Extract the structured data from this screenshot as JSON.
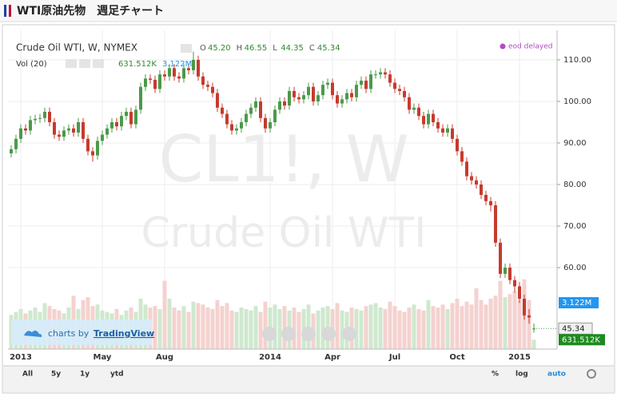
{
  "page": {
    "title": "WTI原油先物　週足チャート",
    "status": "eod delayed",
    "credit": "charts by",
    "brand": "TradingView",
    "ranges": [
      "All",
      "5y",
      "1y",
      "ytd"
    ],
    "scales": [
      "%",
      "log",
      "auto"
    ]
  },
  "chart_data": {
    "type": "candlestick",
    "title": "Crude Oil WTI, W, NYMEX",
    "watermark": [
      "CL1!, W",
      "Crude Oil WTI"
    ],
    "ohlc_legend": [
      {
        "label": "O",
        "value": "45.20"
      },
      {
        "label": "H",
        "value": "46.55"
      },
      {
        "label": "L",
        "value": "44.35"
      },
      {
        "label": "C",
        "value": "45.34"
      }
    ],
    "last_price_label": "45.34",
    "categories": [
      null,
      null,
      "2013",
      null,
      null,
      null,
      null,
      null,
      null,
      null,
      null,
      null,
      null,
      null,
      null,
      null,
      null,
      null,
      null,
      "May",
      null,
      null,
      null,
      null,
      null,
      null,
      null,
      null,
      null,
      null,
      null,
      null,
      "Aug",
      null,
      null,
      null,
      null,
      null,
      null,
      null,
      null,
      null,
      null,
      null,
      null,
      null,
      null,
      null,
      null,
      null,
      null,
      null,
      null,
      null,
      "2014",
      null,
      null,
      null,
      null,
      null,
      null,
      null,
      null,
      null,
      null,
      null,
      null,
      "Apr",
      null,
      null,
      null,
      null,
      null,
      null,
      null,
      null,
      null,
      null,
      null,
      null,
      "Jul",
      null,
      null,
      null,
      null,
      null,
      null,
      null,
      null,
      null,
      null,
      null,
      null,
      "Oct",
      null,
      null,
      null,
      null,
      null,
      null,
      null,
      null,
      null,
      null,
      null,
      null,
      "2015",
      null,
      null,
      null
    ],
    "series": [
      {
        "name": "Crude Oil WTI",
        "up_color": "#4b9a4b",
        "down_color": "#c63b2e",
        "open": [
          87.5,
          88.5,
          91,
          93.5,
          93,
          95.5,
          95.8,
          96,
          97.5,
          95,
          92,
          91.5,
          93,
          93.5,
          92.5,
          95,
          91,
          88,
          87,
          90.5,
          92,
          93.5,
          95,
          94,
          96.5,
          97.5,
          94.5,
          98,
          103.5,
          105.5,
          105.2,
          103,
          106.5,
          106,
          108,
          106,
          105.5,
          108,
          107.5,
          110,
          106,
          104,
          103.5,
          102,
          98.5,
          97,
          94.5,
          93,
          93.5,
          95,
          97,
          98.5,
          100,
          96,
          93.5,
          95,
          98,
          100,
          99,
          102.5,
          101,
          100.5,
          101.5,
          103.5,
          100,
          101.5,
          104,
          104.5,
          101.5,
          99.5,
          100.5,
          102,
          101,
          104,
          105,
          103,
          106.5,
          106.5,
          107,
          106.5,
          104.5,
          103,
          102.5,
          101,
          98,
          98.5,
          96.5,
          94.5,
          97,
          95,
          93.5,
          92.5,
          93.5,
          91,
          88,
          85.5,
          82,
          81,
          80,
          77.5,
          76,
          75,
          66,
          58.5,
          60,
          57,
          55.5,
          52.5,
          48.5,
          45.2
        ],
        "high": [
          89.5,
          92,
          94.5,
          94.5,
          96.5,
          96.8,
          97,
          98.5,
          98.5,
          96,
          93,
          94,
          94.5,
          94.5,
          96,
          96,
          92,
          89,
          91.5,
          93,
          94.5,
          96,
          96,
          97.5,
          98.5,
          98.5,
          99,
          104.5,
          106.5,
          106.5,
          106.2,
          107.5,
          107.5,
          109,
          109,
          107,
          109,
          109,
          112,
          111,
          107,
          105,
          104.5,
          103,
          99.5,
          98,
          95.5,
          94.5,
          96,
          98,
          99.5,
          101,
          101,
          97,
          96,
          99,
          101,
          101,
          103.5,
          103.5,
          102,
          102.5,
          104.5,
          104.5,
          102.5,
          105,
          105.5,
          105.5,
          102.5,
          101.5,
          103,
          103,
          105,
          106,
          106,
          107.5,
          107.5,
          108,
          108,
          107.5,
          105.5,
          104,
          103.5,
          102,
          99.5,
          99.5,
          97.5,
          98,
          98,
          96,
          94.5,
          94.5,
          94.5,
          92,
          89,
          86.5,
          83,
          82,
          81,
          78.5,
          77,
          76,
          67,
          61,
          61,
          58,
          56.5,
          53.5,
          50,
          46.55
        ],
        "low": [
          86.5,
          87.5,
          90,
          92,
          92,
          94.5,
          94.8,
          95,
          94,
          91,
          90.5,
          90.5,
          92,
          91.5,
          91.5,
          90,
          87,
          85.5,
          86,
          89.5,
          91,
          92.5,
          93,
          93,
          95.5,
          93.5,
          93.5,
          97,
          102.5,
          104.2,
          102,
          102,
          105,
          105,
          105,
          104.5,
          104.5,
          106.5,
          106.5,
          105,
          103,
          102.5,
          101,
          97.5,
          96,
          93.5,
          92,
          92,
          92.5,
          94,
          96,
          97.5,
          95,
          92.5,
          92.5,
          94,
          97,
          98,
          98,
          100,
          99.5,
          99.5,
          100.5,
          99,
          99,
          100.5,
          103,
          100.5,
          98.5,
          98.5,
          99.5,
          100,
          100,
          103,
          102,
          102,
          105.5,
          105.5,
          105.5,
          103.5,
          102,
          101.5,
          100,
          97,
          97,
          95.5,
          93.5,
          93.5,
          94,
          92.5,
          91.5,
          91.5,
          90,
          87,
          84.5,
          81,
          80,
          79,
          76.5,
          75,
          73.5,
          65,
          57.5,
          57.5,
          56,
          54,
          51.5,
          47.5,
          46.5,
          44.35
        ],
        "close": [
          88.5,
          91,
          93.5,
          93,
          95.5,
          95.8,
          96,
          97.5,
          95,
          92,
          91.5,
          93,
          93.5,
          92.5,
          95,
          91,
          88,
          87,
          90.5,
          92,
          93.5,
          95,
          94,
          96.5,
          97.5,
          94.5,
          98,
          103.5,
          105.5,
          105.2,
          103,
          106.5,
          106,
          108,
          106,
          105.5,
          108,
          107.5,
          110,
          106,
          104,
          103.5,
          102,
          98.5,
          97,
          94.5,
          93,
          93.5,
          95,
          97,
          98.5,
          100,
          96,
          93.5,
          95,
          98,
          100,
          99,
          102.5,
          101,
          100.5,
          101.5,
          103.5,
          100,
          101.5,
          104,
          104.5,
          101.5,
          99.5,
          100.5,
          102,
          101,
          104,
          105,
          103,
          106.5,
          106.5,
          107,
          106.5,
          104.5,
          103,
          102.5,
          101,
          98,
          98.5,
          96.5,
          94.5,
          97,
          95,
          93.5,
          92.5,
          93.5,
          91,
          88,
          85.5,
          82,
          81,
          80,
          77.5,
          76,
          75,
          66,
          58.5,
          60,
          57,
          55.5,
          52.5,
          48.5,
          48,
          45.34
        ]
      }
    ],
    "volume": {
      "name": "Vol (20)",
      "axis": "y2",
      "up_color": "#cfe8cf",
      "down_color": "#f4d2cf",
      "values": [
        2300,
        2500,
        2700,
        2400,
        2600,
        2800,
        2500,
        3100,
        2900,
        2700,
        2600,
        2400,
        2800,
        3600,
        2700,
        3300,
        3500,
        2900,
        3000,
        2600,
        2500,
        2400,
        2700,
        2300,
        2600,
        2800,
        2500,
        3400,
        3000,
        2800,
        2900,
        2700,
        4600,
        3400,
        2800,
        2600,
        2900,
        2500,
        3200,
        3100,
        3000,
        2800,
        2700,
        3300,
        2900,
        3100,
        2600,
        2500,
        2800,
        2700,
        2600,
        2900,
        2500,
        3200,
        2800,
        3000,
        2700,
        2900,
        2600,
        2800,
        2500,
        2700,
        3000,
        2400,
        2600,
        2800,
        2900,
        2700,
        3100,
        2600,
        2500,
        2800,
        2700,
        2600,
        2900,
        3000,
        3100,
        2800,
        2700,
        3200,
        2900,
        2600,
        2500,
        2800,
        3000,
        2700,
        2600,
        3300,
        2900,
        2800,
        3000,
        2700,
        3100,
        3400,
        2900,
        3200,
        3000,
        4100,
        3300,
        3000,
        3400,
        3600,
        4600,
        3500,
        3700,
        3900,
        3300,
        4700,
        3300,
        631.512
      ],
      "last_label": "631.512K"
    },
    "volume_ma": {
      "value": 3122,
      "label": "3.122M",
      "color": "#2196f3"
    },
    "ylim": [
      40.4,
      117.1
    ],
    "y2lim": [
      0,
      21480
    ],
    "yticks": [
      {
        "value": 60,
        "label": "60.00"
      },
      {
        "value": 70,
        "label": "70.00"
      },
      {
        "value": 80,
        "label": "80.00"
      },
      {
        "value": 90,
        "label": "90.00"
      },
      {
        "value": 100,
        "label": "100.00"
      },
      {
        "value": 110,
        "label": "110.00"
      }
    ],
    "grid": true
  }
}
